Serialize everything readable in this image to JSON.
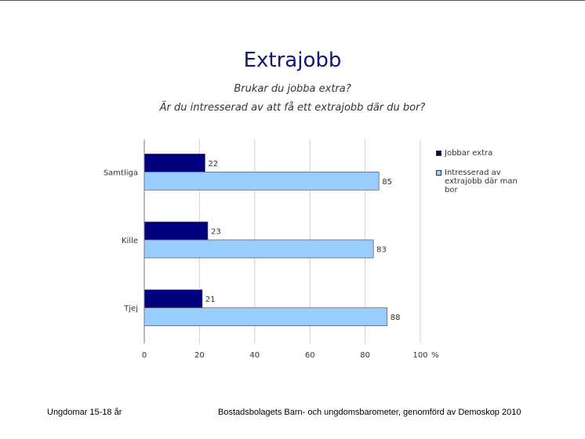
{
  "title": "Extrajobb",
  "subtitles": [
    "Brukar du jobba extra?",
    "Är du intresserad av att få ett extrajobb där du bor?"
  ],
  "footer": {
    "left": "Ungdomar 15-18 år",
    "right": "Bostadsbolagets Barn- och ungdomsbarometer, genomförd av Demoskop 2010"
  },
  "chart_data": {
    "type": "bar",
    "orientation": "horizontal",
    "categories": [
      "Samtliga",
      "Kille",
      "Tjej"
    ],
    "series": [
      {
        "name": "Jobbar extra",
        "values": [
          22,
          23,
          21
        ],
        "color": "#000080"
      },
      {
        "name": "Intresserad av extrajobb där man bor",
        "values": [
          85,
          83,
          88
        ],
        "color": "#99ccff"
      }
    ],
    "xlim": [
      0,
      100
    ],
    "xticks": [
      "0",
      "20",
      "40",
      "60",
      "80",
      "100"
    ],
    "xunit": "%",
    "grid": true,
    "legend_position": "right"
  }
}
